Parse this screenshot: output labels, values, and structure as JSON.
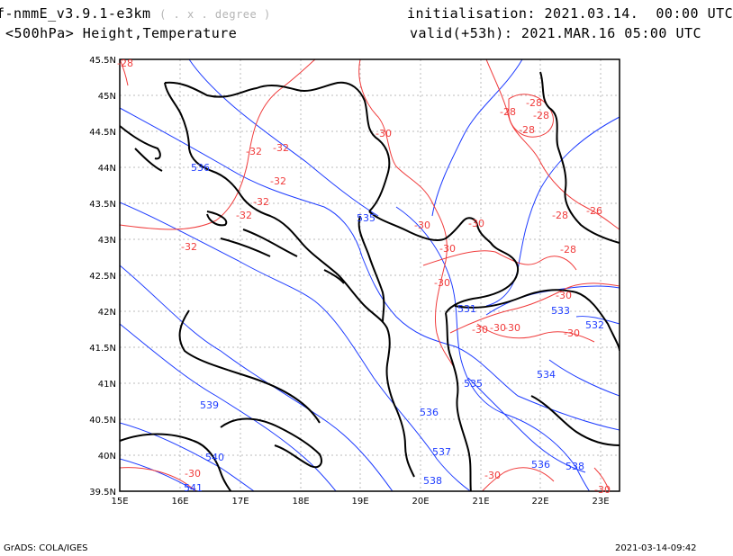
{
  "header": {
    "model": "f-nmmE_v3.9.1-e3km",
    "grid": "( . x . degree )",
    "level": "<500hPa> Height,Temperature",
    "init_label": "initialisation:",
    "init_value": "2021.03.14.  00:00 UTC",
    "valid_label": "valid(+53h):",
    "valid_value": "2021.MAR.16 05:00 UTC"
  },
  "footer": {
    "left": "GrADS: COLA/IGES",
    "right": "2021-03-14-09:42"
  },
  "map": {
    "lat_ticks": [
      "45.5N",
      "45N",
      "44.5N",
      "44N",
      "43.5N",
      "43N",
      "42.5N",
      "42N",
      "41.5N",
      "41N",
      "40.5N",
      "40N",
      "39.5N"
    ],
    "lon_ticks": [
      "15E",
      "16E",
      "17E",
      "18E",
      "19E",
      "20E",
      "21E",
      "22E",
      "23E"
    ],
    "height_color": "#1e3cff",
    "temp_color": "#f03c3c",
    "height_labels": [
      "536",
      "535",
      "539",
      "540",
      "541",
      "531",
      "533",
      "532",
      "534",
      "535",
      "536",
      "537",
      "538",
      "536",
      "538"
    ],
    "temp_labels": [
      "-32",
      "-32",
      "-32",
      "-32",
      "-32",
      "-32",
      "-30",
      "-28",
      "-28",
      "-28",
      "-28",
      "-28",
      "-26",
      "-28",
      "-30",
      "-30",
      "-30",
      "-30",
      "-30",
      "-30",
      "-30",
      "-30",
      "-30",
      "-30",
      "-30",
      "-30",
      "-28"
    ]
  }
}
